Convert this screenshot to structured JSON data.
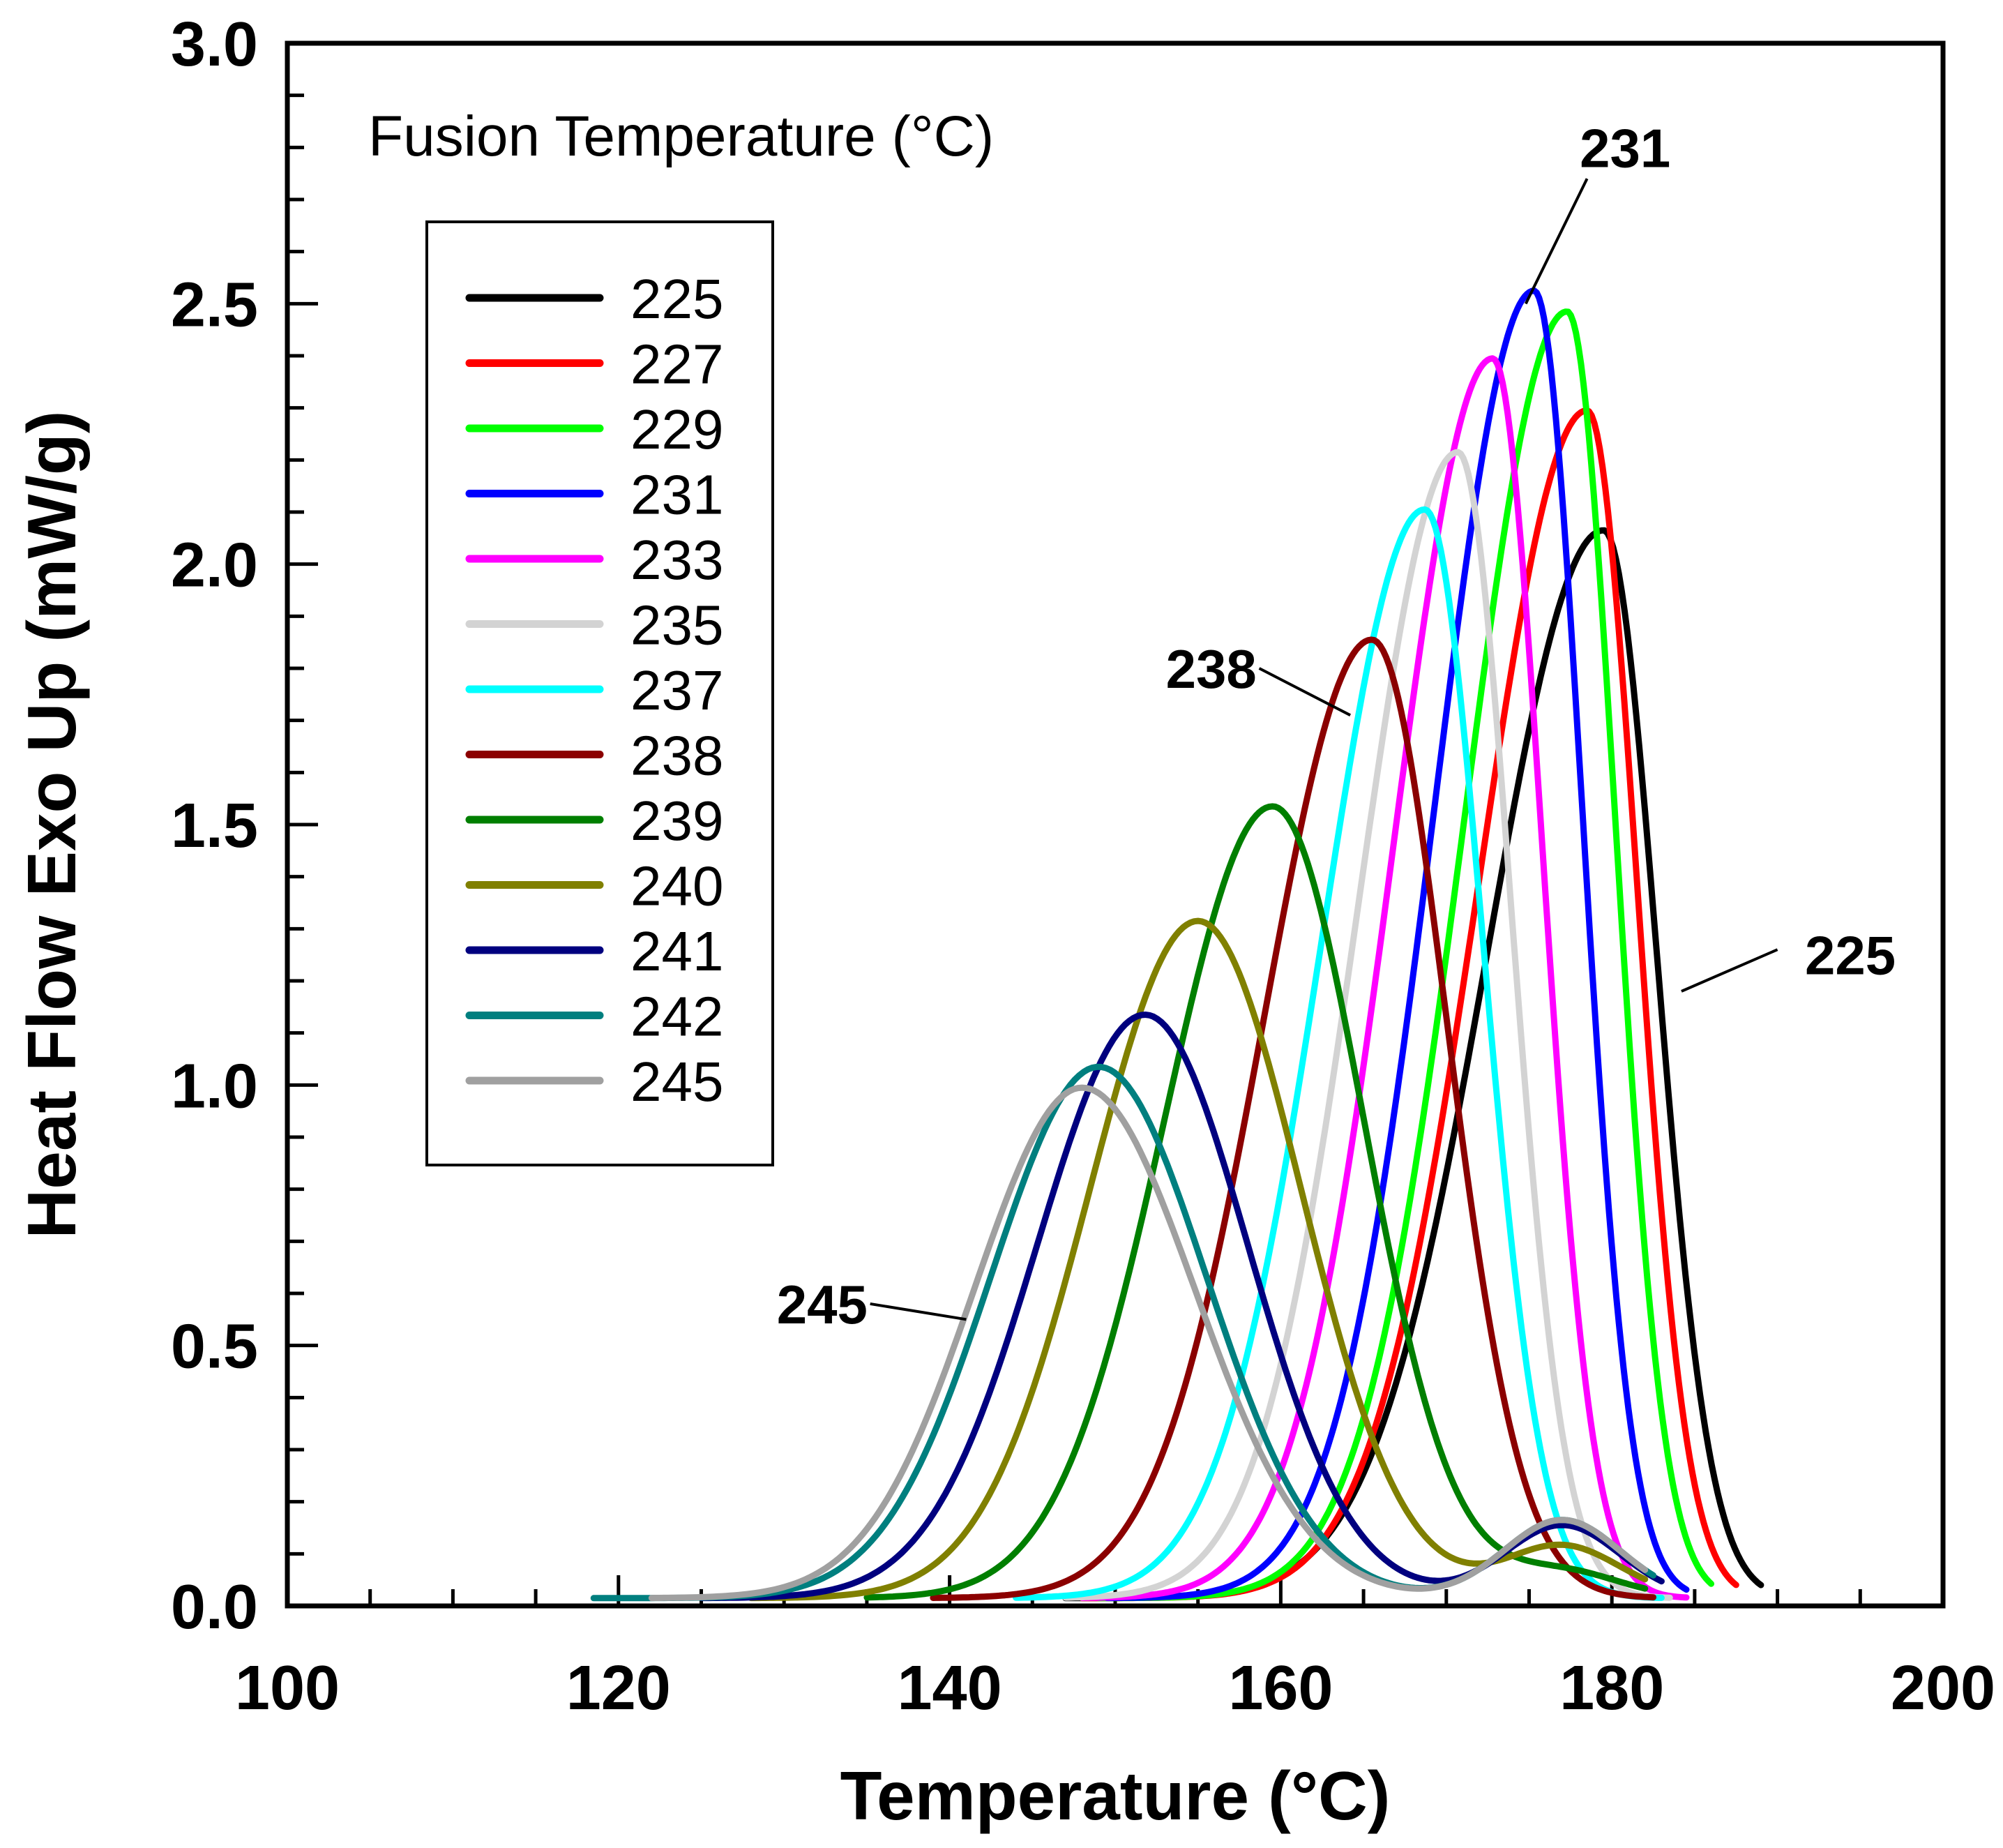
{
  "chart_data": {
    "type": "line",
    "xlabel": "Temperature (°C)",
    "ylabel": "Heat Flow Exo Up (mW/g)",
    "xlim": [
      100,
      200
    ],
    "ylim": [
      0.0,
      3.0
    ],
    "xticks": [
      100,
      120,
      140,
      160,
      180,
      200
    ],
    "xtick_labels": [
      "100",
      "120",
      "140",
      "160",
      "180",
      "200"
    ],
    "yticks": [
      0.0,
      0.5,
      1.0,
      1.5,
      2.0,
      2.5,
      3.0
    ],
    "ytick_labels": [
      "0.0",
      "0.5",
      "1.0",
      "1.5",
      "2.0",
      "2.5",
      "3.0"
    ],
    "legend_title": "Fusion Temperature (°C)",
    "legend_position": "top-left",
    "grid": false,
    "series": [
      {
        "name": "225",
        "color": "#000000",
        "start": 147,
        "end": 189,
        "peak_x": 179.5,
        "peak_y": 2.05,
        "sigma_left": 7.0,
        "sigma_right": 3.2,
        "shoulder": 0.0
      },
      {
        "name": "227",
        "color": "#ff0000",
        "start": 148,
        "end": 187.5,
        "peak_x": 178.5,
        "peak_y": 2.28,
        "sigma_left": 6.5,
        "sigma_right": 3.0,
        "shoulder": 0.0
      },
      {
        "name": "229",
        "color": "#00ff00",
        "start": 149,
        "end": 186,
        "peak_x": 177.3,
        "peak_y": 2.47,
        "sigma_left": 6.2,
        "sigma_right": 2.9,
        "shoulder": 0.0
      },
      {
        "name": "231",
        "color": "#0000ff",
        "start": 149.5,
        "end": 184.5,
        "peak_x": 175.3,
        "peak_y": 2.51,
        "sigma_left": 6.0,
        "sigma_right": 2.9,
        "shoulder": 0.0
      },
      {
        "name": "233",
        "color": "#ff00ff",
        "start": 148,
        "end": 184.5,
        "peak_x": 172.8,
        "peak_y": 2.38,
        "sigma_left": 6.0,
        "sigma_right": 3.0,
        "shoulder": 0.0
      },
      {
        "name": "235",
        "color": "#d3d3d3",
        "start": 147,
        "end": 183.5,
        "peak_x": 170.7,
        "peak_y": 2.2,
        "sigma_left": 6.0,
        "sigma_right": 3.2,
        "shoulder": 0.0
      },
      {
        "name": "237",
        "color": "#00ffff",
        "start": 144,
        "end": 183,
        "peak_x": 168.7,
        "peak_y": 2.09,
        "sigma_left": 6.2,
        "sigma_right": 3.5,
        "shoulder": 0.0
      },
      {
        "name": "238",
        "color": "#8b0000",
        "start": 139,
        "end": 182.5,
        "peak_x": 165.5,
        "peak_y": 1.84,
        "sigma_left": 6.5,
        "sigma_right": 4.5,
        "shoulder": 0.0
      },
      {
        "name": "239",
        "color": "#007f00",
        "start": 135,
        "end": 182,
        "peak_x": 159.5,
        "peak_y": 1.52,
        "sigma_left": 6.5,
        "sigma_right": 5.5,
        "shoulder": 0.05
      },
      {
        "name": "240",
        "color": "#808000",
        "start": 128,
        "end": 182,
        "peak_x": 155.0,
        "peak_y": 1.3,
        "sigma_left": 6.5,
        "sigma_right": 6.2,
        "shoulder": 0.1
      },
      {
        "name": "241",
        "color": "#00007f",
        "start": 125,
        "end": 183,
        "peak_x": 151.8,
        "peak_y": 1.12,
        "sigma_left": 6.5,
        "sigma_right": 6.2,
        "shoulder": 0.14
      },
      {
        "name": "242",
        "color": "#007f7f",
        "start": 118.5,
        "end": 182.5,
        "peak_x": 149.0,
        "peak_y": 1.02,
        "sigma_left": 6.5,
        "sigma_right": 6.5,
        "shoulder": 0.15
      },
      {
        "name": "245",
        "color": "#a0a0a0",
        "start": 122,
        "end": 182,
        "peak_x": 148.0,
        "peak_y": 0.98,
        "sigma_left": 6.5,
        "sigma_right": 6.8,
        "shoulder": 0.15
      }
    ],
    "annotations": [
      {
        "text": "231",
        "line": [
          [
            174.8,
            2.5
          ],
          [
            178.5,
            2.74
          ]
        ],
        "label": [
          180.8,
          2.8
        ]
      },
      {
        "text": "238",
        "line": [
          [
            164.2,
            1.71
          ],
          [
            158.7,
            1.8
          ]
        ],
        "label": [
          155.8,
          1.8
        ]
      },
      {
        "text": "225",
        "line": [
          [
            184.2,
            1.18
          ],
          [
            190.0,
            1.26
          ]
        ],
        "label": [
          194.4,
          1.25
        ]
      },
      {
        "text": "245",
        "line": [
          [
            141.0,
            0.55
          ],
          [
            135.2,
            0.58
          ]
        ],
        "label": [
          132.3,
          0.58
        ]
      }
    ]
  }
}
